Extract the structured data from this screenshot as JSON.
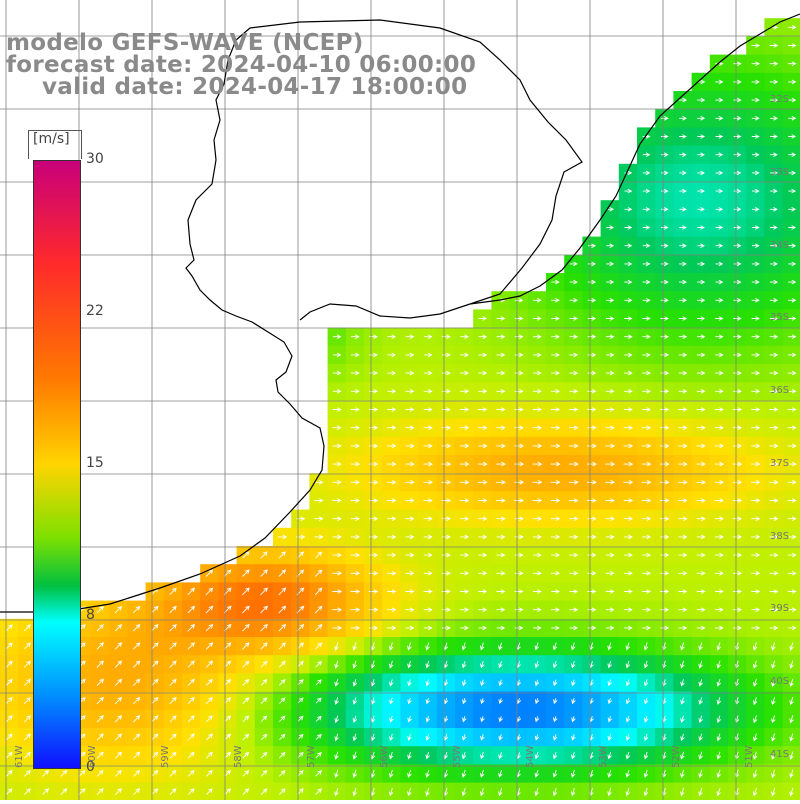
{
  "titles": {
    "line1": "modelo GEFS-WAVE (NCEP)",
    "line2": "forecast date: 2024-04-10 06:00:00",
    "line3": "valid date: 2024-04-17 18:00:00"
  },
  "colorbar": {
    "unit": "[m/s]",
    "ticks": [
      "30",
      "22",
      "15",
      "8",
      "0"
    ],
    "colors": [
      "#c8007a",
      "#ff2a2a",
      "#ff7a00",
      "#ffd400",
      "#7ee000",
      "#00c040",
      "#00ffff",
      "#0090ff",
      "#1010ff"
    ]
  },
  "lat_labels": [
    "32S",
    "33S",
    "34S",
    "35S",
    "36S",
    "37S",
    "38S",
    "39S",
    "40S",
    "41S"
  ],
  "lon_labels": [
    "61W",
    "60W",
    "59W",
    "58W",
    "57W",
    "56W",
    "55W",
    "54W",
    "53W",
    "52W",
    "51W"
  ],
  "colors": {
    "land": "#ffffff",
    "grid": "#808080",
    "coast": "#000000",
    "title": "#8a8a8a",
    "arrow": "#ffffff"
  }
}
